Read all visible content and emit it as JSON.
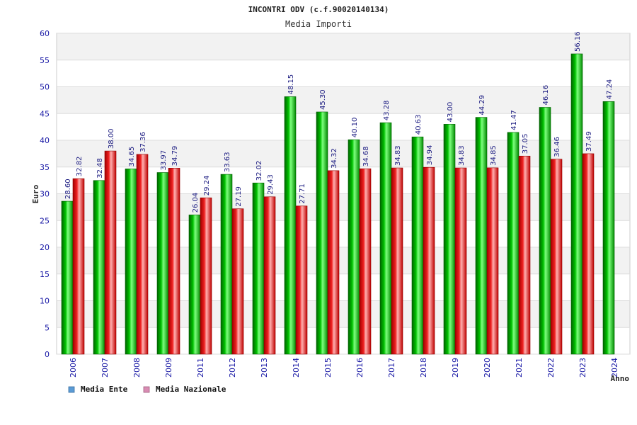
{
  "chart_data": {
    "type": "bar",
    "title": "INCONTRI ODV (c.f.90020140134)",
    "subtitle": "Media Importi",
    "xlabel": "Anno",
    "ylabel": "Euro",
    "ylim": [
      0,
      60
    ],
    "yticks": [
      0,
      5,
      10,
      15,
      20,
      25,
      30,
      35,
      40,
      45,
      50,
      55,
      60
    ],
    "grid": true,
    "legend_position": "bottom-left",
    "categories": [
      "2006",
      "2007",
      "2008",
      "2009",
      "2011",
      "2012",
      "2013",
      "2014",
      "2015",
      "2016",
      "2017",
      "2018",
      "2019",
      "2020",
      "2021",
      "2022",
      "2023",
      "2024"
    ],
    "series": [
      {
        "name": "Media Ente",
        "color": "#00b000",
        "legend_color": "#5b9bd5",
        "values": [
          28.6,
          32.48,
          34.65,
          33.97,
          26.04,
          33.63,
          32.02,
          48.15,
          45.3,
          40.1,
          43.28,
          40.63,
          43.0,
          44.29,
          41.47,
          46.16,
          56.16,
          47.24
        ],
        "labels": [
          "28.60",
          "32.48",
          "34.65",
          "33.97",
          "26.04",
          "33.63",
          "32.02",
          "48.15",
          "45.30",
          "40.10",
          "43.28",
          "40.63",
          "43.00",
          "44.29",
          "41.47",
          "46.16",
          "56.16",
          "47.24"
        ]
      },
      {
        "name": "Media Nazionale",
        "color": "#e01010",
        "legend_color": "#d98cb3",
        "values": [
          32.82,
          38.0,
          37.36,
          34.79,
          29.24,
          27.19,
          29.43,
          27.71,
          34.32,
          34.68,
          34.83,
          34.94,
          34.83,
          34.85,
          37.05,
          36.46,
          37.49,
          null
        ],
        "labels": [
          "32.82",
          "38.00",
          "37.36",
          "34.79",
          "29.24",
          "27.19",
          "29.43",
          "27.71",
          "34.32",
          "34.68",
          "34.83",
          "34.94",
          "34.83",
          "34.85",
          "37.05",
          "36.46",
          "37.49",
          null
        ]
      }
    ]
  }
}
